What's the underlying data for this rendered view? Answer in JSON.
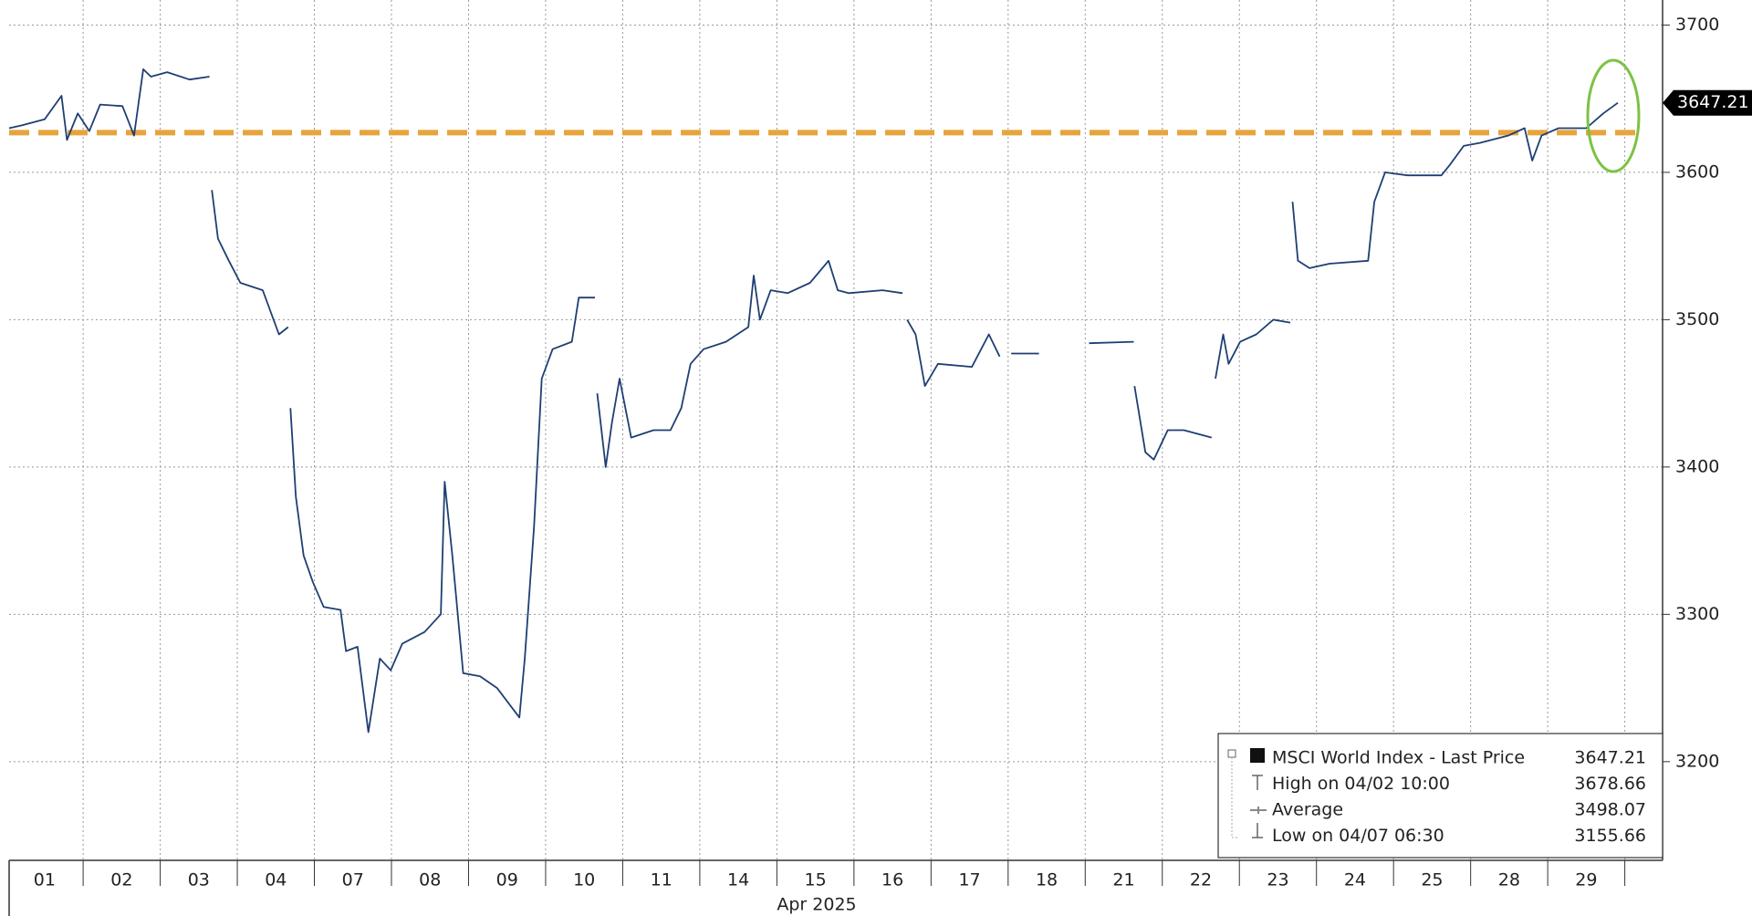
{
  "chart_data": {
    "type": "line",
    "x_label": "Apr 2025",
    "xlim": [
      -0.46,
      20.99
    ],
    "xticks": [
      {
        "value": 0,
        "label": "01"
      },
      {
        "value": 1,
        "label": "02"
      },
      {
        "value": 2,
        "label": "03"
      },
      {
        "value": 3,
        "label": "04"
      },
      {
        "value": 4,
        "label": "07"
      },
      {
        "value": 5,
        "label": "08"
      },
      {
        "value": 6,
        "label": "09"
      },
      {
        "value": 7,
        "label": "10"
      },
      {
        "value": 8,
        "label": "11"
      },
      {
        "value": 9,
        "label": "14"
      },
      {
        "value": 10,
        "label": "15"
      },
      {
        "value": 11,
        "label": "16"
      },
      {
        "value": 12,
        "label": "17"
      },
      {
        "value": 13,
        "label": "18"
      },
      {
        "value": 14,
        "label": "21"
      },
      {
        "value": 15,
        "label": "22"
      },
      {
        "value": 16,
        "label": "23"
      },
      {
        "value": 17,
        "label": "24"
      },
      {
        "value": 18,
        "label": "25"
      },
      {
        "value": 19,
        "label": "28"
      },
      {
        "value": 20,
        "label": "29"
      }
    ],
    "ylim": [
      3133,
      3717
    ],
    "yticks": [
      3200,
      3300,
      3400,
      3500,
      3600,
      3700
    ],
    "grid": true,
    "x": [
      -0.46,
      -0.29,
      0,
      0.22,
      0.29,
      0.43,
      0.58,
      0.72,
      1.01,
      1.16,
      1.28,
      1.38,
      1.59,
      1.88,
      2.14,
      null,
      2.17,
      2.25,
      2.39,
      2.54,
      2.83,
      3.04,
      3.16,
      null,
      3.19,
      3.26,
      3.36,
      3.48,
      3.62,
      3.84,
      3.91,
      4.06,
      4.2,
      4.35,
      4.49,
      4.64,
      4.93,
      5.14,
      5.19,
      5.29,
      5.43,
      5.65,
      5.87,
      6.16,
      6.23,
      6.35,
      6.45,
      6.59,
      6.84,
      6.93,
      7.14,
      null,
      7.17,
      7.28,
      7.36,
      7.46,
      7.61,
      7.9,
      8.12,
      8.26,
      8.38,
      8.55,
      8.84,
      9.13,
      9.2,
      9.28,
      9.42,
      9.64,
      9.93,
      10.17,
      10.29,
      10.43,
      10.87,
      11.13,
      null,
      11.19,
      11.3,
      11.42,
      11.59,
      12.03,
      12.25,
      12.39,
      null,
      12.54,
      12.9,
      null,
      13.55,
      14.13,
      null,
      14.14,
      14.28,
      14.39,
      14.57,
      14.78,
      15.14,
      null,
      15.19,
      15.29,
      15.36,
      15.51,
      15.72,
      15.94,
      16.16,
      null,
      16.19,
      16.26,
      16.41,
      16.67,
      17.17,
      17.25,
      17.39,
      17.68,
      18.12,
      18.23,
      18.41,
      18.62,
      18.99,
      19.2,
      19.3,
      19.42,
      19.64,
      20.0,
      20.22,
      20.41
    ],
    "series": [
      {
        "name": "MSCI World Index - Last Price",
        "color": "#1f3f73",
        "values": [
          3630,
          3632,
          3636,
          3652,
          3622,
          3640,
          3628,
          3646,
          3645,
          3625,
          3670,
          3665,
          3668,
          3663,
          3665,
          null,
          3588,
          3555,
          3540,
          3525,
          3520,
          3490,
          3495,
          null,
          3440,
          3380,
          3340,
          3322,
          3305,
          3303,
          3275,
          3278,
          3220,
          3270,
          3262,
          3280,
          3288,
          3300,
          3390,
          3340,
          3260,
          3258,
          3250,
          3230,
          3270,
          3360,
          3460,
          3480,
          3485,
          3515,
          3515,
          null,
          3450,
          3400,
          3430,
          3460,
          3420,
          3425,
          3425,
          3440,
          3470,
          3480,
          3485,
          3495,
          3530,
          3500,
          3520,
          3518,
          3525,
          3540,
          3520,
          3518,
          3520,
          3518,
          null,
          3500,
          3490,
          3455,
          3470,
          3468,
          3490,
          3475,
          null,
          3477,
          3477,
          null,
          3484,
          3485,
          null,
          3455,
          3410,
          3405,
          3425,
          3425,
          3420,
          null,
          3460,
          3490,
          3470,
          3485,
          3490,
          3500,
          3498,
          null,
          3580,
          3540,
          3535,
          3538,
          3540,
          3580,
          3600,
          3598,
          3598,
          3605,
          3618,
          3620,
          3625,
          3630,
          3608,
          3625,
          3630,
          3630,
          3640,
          3647.21
        ]
      }
    ],
    "reference_line": {
      "value": 3627,
      "color": "#e6a53c"
    },
    "last_price": 3647.21,
    "legend": [
      {
        "name": "MSCI World Index - Last Price",
        "value": 3647.21
      },
      {
        "name": "High on 04/02 10:00",
        "value": 3678.66
      },
      {
        "name": "Average",
        "value": 3498.07
      },
      {
        "name": "Low on 04/07 06:30",
        "value": 3155.66
      }
    ]
  }
}
